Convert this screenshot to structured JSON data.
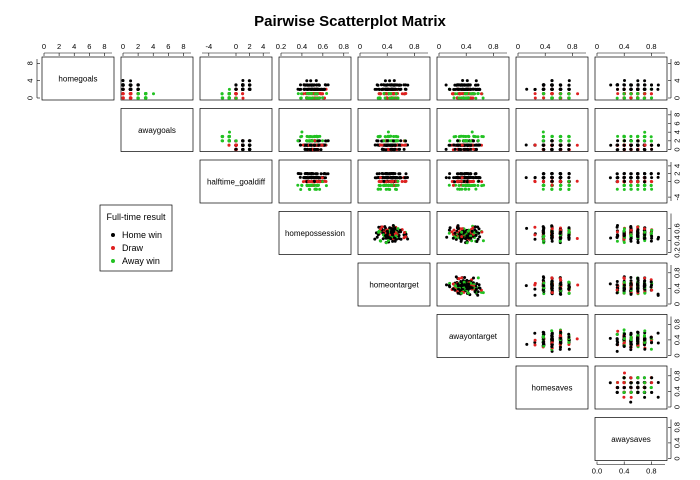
{
  "chart_data": {
    "type": "scatter",
    "title": "Pairwise Scatterplot Matrix",
    "variables": [
      {
        "name": "homegoals",
        "range": [
          0,
          9
        ],
        "ticks": [
          0,
          4,
          8
        ],
        "top_ticks": [
          0,
          2,
          4,
          6,
          8
        ]
      },
      {
        "name": "awaygoals",
        "range": [
          0,
          9
        ],
        "ticks": [
          0,
          2,
          4,
          6,
          8
        ],
        "top_ticks": [
          0,
          2,
          4,
          6,
          8
        ]
      },
      {
        "name": "halftime_goaldiff",
        "range": [
          -5,
          5
        ],
        "ticks": [
          -4,
          0,
          2,
          4
        ],
        "top_ticks": [
          -4,
          0,
          2,
          4
        ]
      },
      {
        "name": "homepossession",
        "range": [
          0.2,
          0.85
        ],
        "ticks": [
          0.2,
          0.4,
          0.6
        ],
        "top_ticks": [
          0.2,
          0.4,
          0.6,
          0.8
        ]
      },
      {
        "name": "homeontarget",
        "range": [
          0,
          1
        ],
        "ticks": [
          0.0,
          0.4,
          0.8
        ],
        "top_ticks": [
          0.0,
          0.4,
          0.8
        ]
      },
      {
        "name": "awayontarget",
        "range": [
          0,
          1
        ],
        "ticks": [
          0.0,
          0.4,
          0.8
        ],
        "top_ticks": [
          0.0,
          0.4,
          0.8
        ]
      },
      {
        "name": "homesaves",
        "range": [
          0,
          1
        ],
        "ticks": [
          0.0,
          0.4,
          0.8
        ],
        "top_ticks": [
          0.0,
          0.4,
          0.8
        ]
      },
      {
        "name": "awaysaves",
        "range": [
          0,
          1
        ],
        "ticks": [
          0.0,
          0.4,
          0.8
        ],
        "top_ticks": [
          0.0,
          0.4,
          0.8
        ]
      }
    ],
    "groups": [
      {
        "name": "Home win",
        "color": "#000000"
      },
      {
        "name": "Draw",
        "color": "#df2020"
      },
      {
        "name": "Away win",
        "color": "#22c222"
      }
    ],
    "legend": {
      "title": "Full-time result",
      "placement": "lower-left"
    },
    "layout": "upper-triangle",
    "grid": false,
    "samples_per_panel": 170
  }
}
